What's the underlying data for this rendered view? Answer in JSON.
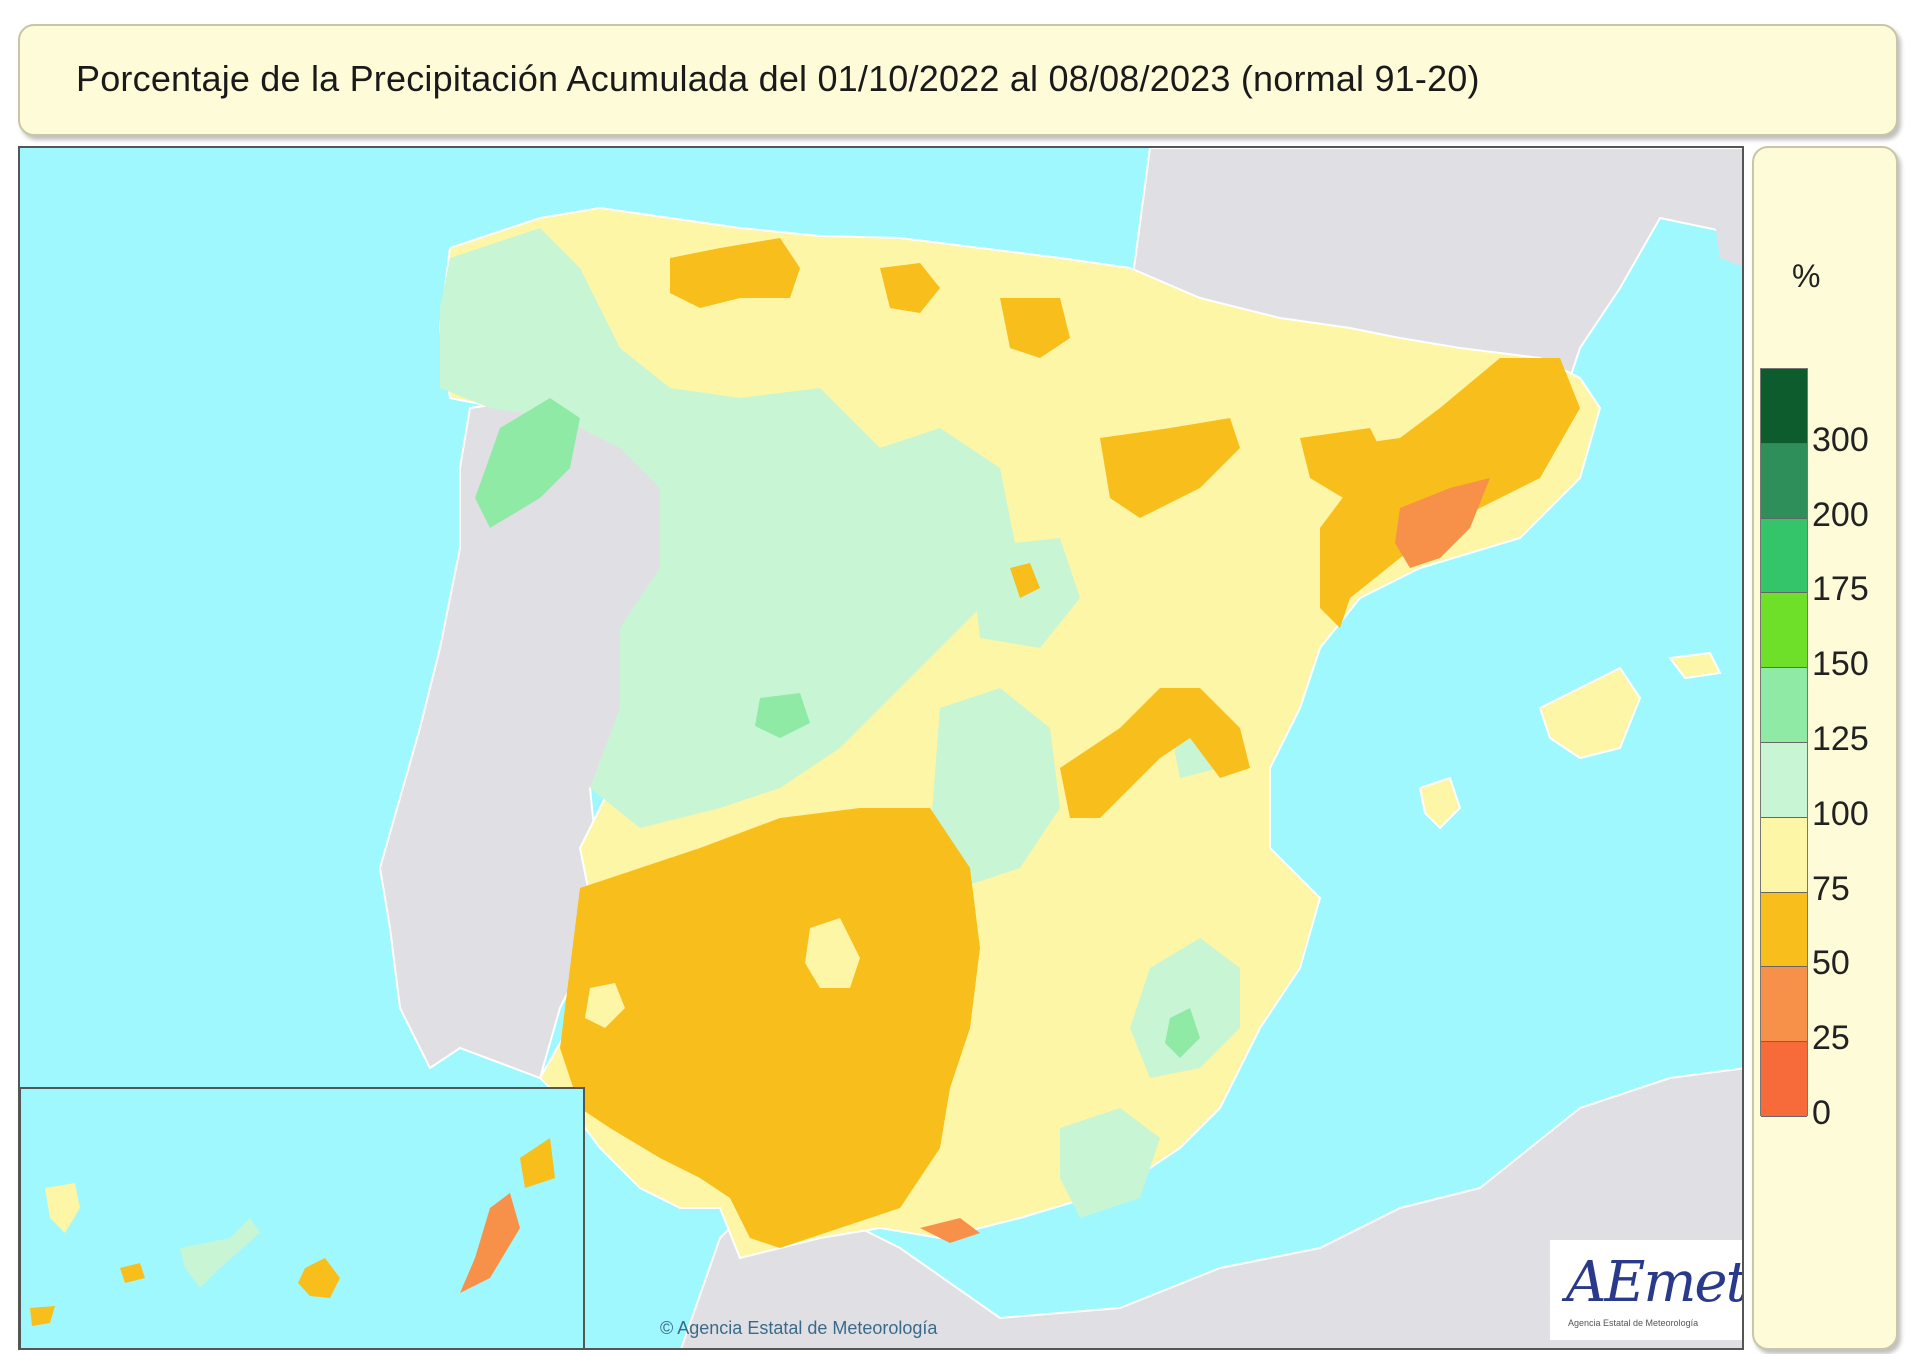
{
  "title": "Porcentaje de la Precipitación Acumulada del 01/10/2022 al 08/08/2023 (normal 91-20)",
  "legend": {
    "unit": "%",
    "classes": [
      {
        "label": "300",
        "color": "#0d5c2e"
      },
      {
        "label": "200",
        "color": "#2f8f5b"
      },
      {
        "label": "175",
        "color": "#34c46a"
      },
      {
        "label": "150",
        "color": "#6fe02a"
      },
      {
        "label": "125",
        "color": "#8feaa6"
      },
      {
        "label": "100",
        "color": "#c8f5d4"
      },
      {
        "label": "75",
        "color": "#fdf6a6"
      },
      {
        "label": "50",
        "color": "#f7be1c"
      },
      {
        "label": "25",
        "color": "#f7914a"
      },
      {
        "label": "0",
        "color": "#f76a3a"
      }
    ],
    "bottom_color": "#f75e2f"
  },
  "colors": {
    "sea": "#9ff8fd",
    "land_outside": "#e0e0e4",
    "border_line": "#e9e6c4"
  },
  "logo": {
    "text": "AEmet",
    "subtitle": "Agencia Estatal de Meteorología"
  },
  "credit": "© Agencia Estatal de Meteorología"
}
